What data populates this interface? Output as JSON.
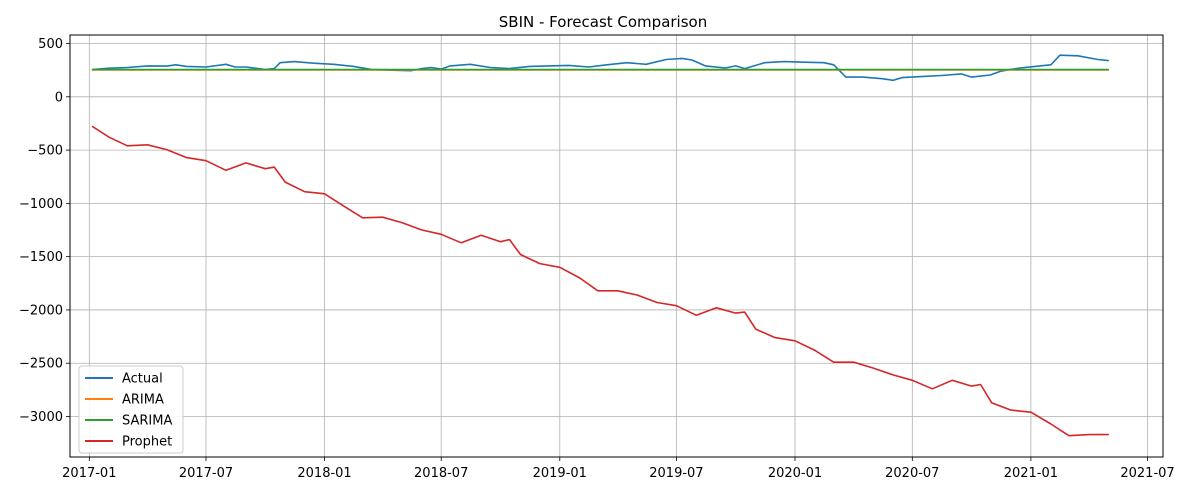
{
  "chart_data": {
    "type": "line",
    "title": "SBIN - Forecast Comparison",
    "xlabel": "",
    "ylabel": "",
    "x_axis_type": "date",
    "x_range": [
      "2016-12-02",
      "2021-07-25"
    ],
    "ylim": [
      -3380,
      580
    ],
    "grid": true,
    "legend_position": "lower-left",
    "x_ticks": [
      "2017-01",
      "2017-07",
      "2018-01",
      "2018-07",
      "2019-01",
      "2019-07",
      "2020-01",
      "2020-07",
      "2021-01",
      "2021-07"
    ],
    "y_ticks": [
      500,
      0,
      -500,
      -1000,
      -1500,
      -2000,
      -2500,
      -3000
    ],
    "y_tick_labels": [
      "500",
      "0",
      "−500",
      "−1000",
      "−1500",
      "−2000",
      "−2500",
      "−3000"
    ],
    "series": [
      {
        "name": "Actual",
        "color": "#1f77b4",
        "points": [
          [
            "2017-01-06",
            255
          ],
          [
            "2017-02-01",
            268
          ],
          [
            "2017-03-01",
            275
          ],
          [
            "2017-04-01",
            290
          ],
          [
            "2017-05-01",
            288
          ],
          [
            "2017-05-15",
            300
          ],
          [
            "2017-06-01",
            285
          ],
          [
            "2017-07-01",
            280
          ],
          [
            "2017-08-01",
            305
          ],
          [
            "2017-08-15",
            280
          ],
          [
            "2017-09-01",
            280
          ],
          [
            "2017-10-01",
            255
          ],
          [
            "2017-10-15",
            265
          ],
          [
            "2017-10-24",
            320
          ],
          [
            "2017-11-15",
            330
          ],
          [
            "2017-12-15",
            315
          ],
          [
            "2018-01-15",
            305
          ],
          [
            "2018-02-15",
            285
          ],
          [
            "2018-03-15",
            255
          ],
          [
            "2018-04-15",
            250
          ],
          [
            "2018-05-15",
            245
          ],
          [
            "2018-06-01",
            265
          ],
          [
            "2018-06-15",
            275
          ],
          [
            "2018-07-01",
            260
          ],
          [
            "2018-07-15",
            290
          ],
          [
            "2018-08-15",
            305
          ],
          [
            "2018-09-15",
            275
          ],
          [
            "2018-10-15",
            265
          ],
          [
            "2018-11-15",
            285
          ],
          [
            "2018-12-15",
            290
          ],
          [
            "2019-01-15",
            295
          ],
          [
            "2019-02-15",
            280
          ],
          [
            "2019-03-15",
            300
          ],
          [
            "2019-04-15",
            320
          ],
          [
            "2019-05-15",
            305
          ],
          [
            "2019-06-15",
            350
          ],
          [
            "2019-07-10",
            360
          ],
          [
            "2019-07-25",
            345
          ],
          [
            "2019-08-15",
            290
          ],
          [
            "2019-09-15",
            270
          ],
          [
            "2019-10-01",
            290
          ],
          [
            "2019-10-15",
            265
          ],
          [
            "2019-11-15",
            320
          ],
          [
            "2019-12-15",
            330
          ],
          [
            "2020-01-15",
            325
          ],
          [
            "2020-02-15",
            320
          ],
          [
            "2020-03-01",
            300
          ],
          [
            "2020-03-20",
            185
          ],
          [
            "2020-04-15",
            185
          ],
          [
            "2020-05-15",
            170
          ],
          [
            "2020-06-01",
            155
          ],
          [
            "2020-06-15",
            180
          ],
          [
            "2020-07-15",
            190
          ],
          [
            "2020-08-15",
            200
          ],
          [
            "2020-09-15",
            215
          ],
          [
            "2020-10-01",
            185
          ],
          [
            "2020-10-30",
            205
          ],
          [
            "2020-11-15",
            240
          ],
          [
            "2020-12-15",
            270
          ],
          [
            "2021-01-15",
            290
          ],
          [
            "2021-02-01",
            300
          ],
          [
            "2021-02-15",
            390
          ],
          [
            "2021-03-15",
            385
          ],
          [
            "2021-04-15",
            350
          ],
          [
            "2021-05-01",
            340
          ]
        ]
      },
      {
        "name": "ARIMA",
        "color": "#ff7f0e",
        "points": [
          [
            "2017-01-06",
            252
          ],
          [
            "2021-05-01",
            252
          ]
        ]
      },
      {
        "name": "SARIMA",
        "color": "#2ca02c",
        "points": [
          [
            "2017-01-06",
            255
          ],
          [
            "2021-05-01",
            255
          ]
        ]
      },
      {
        "name": "Prophet",
        "color": "#d62728",
        "points": [
          [
            "2017-01-06",
            -280
          ],
          [
            "2017-02-01",
            -380
          ],
          [
            "2017-03-01",
            -460
          ],
          [
            "2017-04-01",
            -450
          ],
          [
            "2017-05-01",
            -495
          ],
          [
            "2017-06-01",
            -570
          ],
          [
            "2017-07-01",
            -600
          ],
          [
            "2017-08-01",
            -690
          ],
          [
            "2017-09-01",
            -620
          ],
          [
            "2017-10-01",
            -675
          ],
          [
            "2017-10-15",
            -660
          ],
          [
            "2017-11-01",
            -800
          ],
          [
            "2017-12-01",
            -890
          ],
          [
            "2018-01-01",
            -910
          ],
          [
            "2018-02-01",
            -1030
          ],
          [
            "2018-03-01",
            -1135
          ],
          [
            "2018-04-01",
            -1130
          ],
          [
            "2018-05-01",
            -1180
          ],
          [
            "2018-06-01",
            -1250
          ],
          [
            "2018-07-01",
            -1290
          ],
          [
            "2018-08-01",
            -1370
          ],
          [
            "2018-09-01",
            -1300
          ],
          [
            "2018-10-01",
            -1360
          ],
          [
            "2018-10-15",
            -1340
          ],
          [
            "2018-11-01",
            -1480
          ],
          [
            "2018-12-01",
            -1565
          ],
          [
            "2019-01-01",
            -1600
          ],
          [
            "2019-02-01",
            -1700
          ],
          [
            "2019-03-01",
            -1820
          ],
          [
            "2019-04-01",
            -1820
          ],
          [
            "2019-05-01",
            -1860
          ],
          [
            "2019-06-01",
            -1930
          ],
          [
            "2019-07-01",
            -1960
          ],
          [
            "2019-08-01",
            -2050
          ],
          [
            "2019-09-01",
            -1980
          ],
          [
            "2019-10-01",
            -2030
          ],
          [
            "2019-10-15",
            -2020
          ],
          [
            "2019-11-01",
            -2180
          ],
          [
            "2019-12-01",
            -2260
          ],
          [
            "2020-01-01",
            -2290
          ],
          [
            "2020-02-01",
            -2380
          ],
          [
            "2020-03-01",
            -2490
          ],
          [
            "2020-04-01",
            -2490
          ],
          [
            "2020-05-01",
            -2545
          ],
          [
            "2020-06-01",
            -2610
          ],
          [
            "2020-07-01",
            -2660
          ],
          [
            "2020-08-01",
            -2740
          ],
          [
            "2020-09-01",
            -2660
          ],
          [
            "2020-10-01",
            -2715
          ],
          [
            "2020-10-15",
            -2700
          ],
          [
            "2020-11-01",
            -2870
          ],
          [
            "2020-12-01",
            -2940
          ],
          [
            "2021-01-01",
            -2960
          ],
          [
            "2021-02-01",
            -3070
          ],
          [
            "2021-03-01",
            -3180
          ],
          [
            "2021-04-01",
            -3170
          ],
          [
            "2021-05-01",
            -3170
          ]
        ]
      }
    ]
  }
}
